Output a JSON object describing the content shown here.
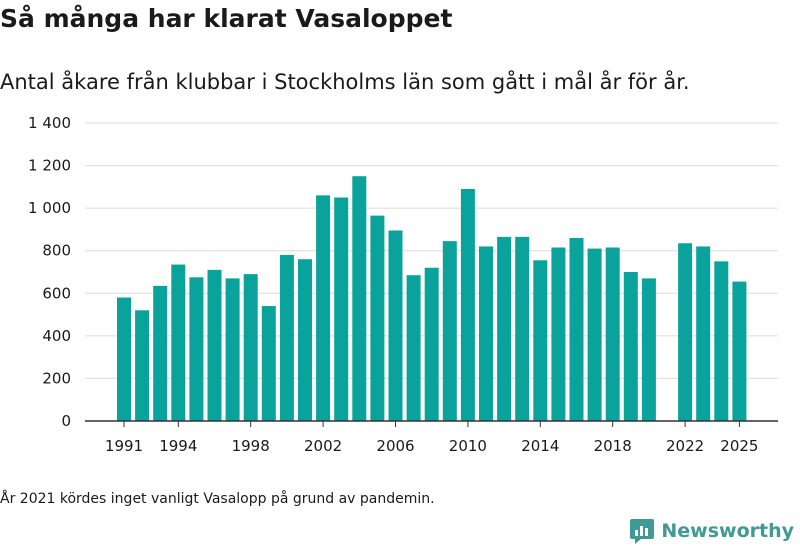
{
  "title": "Så många har klarat Vasaloppet",
  "subtitle": "Antal åkare från klubbar i Stockholms län som gått i mål år för år.",
  "note": "År 2021 kördes inget vanligt Vasalopp på grund av pandemin.",
  "brand": {
    "name": "Newsworthy",
    "icon": "newsworthy-logo-icon"
  },
  "colors": {
    "bar": "#0aa39b",
    "grid": "#dcdcdc",
    "axis": "#333333"
  },
  "chart_data": {
    "type": "bar",
    "title": "Så många har klarat Vasaloppet",
    "xlabel": "",
    "ylabel": "",
    "ylim": [
      0,
      1400
    ],
    "yticks": [
      0,
      200,
      400,
      600,
      800,
      1000,
      1200,
      1400
    ],
    "ytick_labels": [
      "0",
      "200",
      "400",
      "600",
      "800",
      "1 000",
      "1 200",
      "1 400"
    ],
    "xticks": [
      1991,
      1994,
      1998,
      2002,
      2006,
      2010,
      2014,
      2018,
      2022,
      2025
    ],
    "xtick_labels": [
      "1991",
      "1994",
      "1998",
      "2002",
      "2006",
      "2010",
      "2014",
      "2018",
      "2022",
      "2025"
    ],
    "xlim": [
      1990,
      2026
    ],
    "grid": true,
    "categories": [
      1991,
      1992,
      1993,
      1994,
      1995,
      1996,
      1997,
      1998,
      1999,
      2000,
      2001,
      2002,
      2003,
      2004,
      2005,
      2006,
      2007,
      2008,
      2009,
      2010,
      2011,
      2012,
      2013,
      2014,
      2015,
      2016,
      2017,
      2018,
      2019,
      2020,
      2021,
      2022,
      2023,
      2024,
      2025
    ],
    "values": [
      580,
      520,
      635,
      735,
      675,
      710,
      670,
      690,
      540,
      780,
      760,
      1060,
      1050,
      1150,
      965,
      895,
      685,
      720,
      845,
      1090,
      820,
      865,
      865,
      755,
      815,
      860,
      810,
      815,
      700,
      670,
      null,
      835,
      820,
      750,
      655
    ]
  }
}
